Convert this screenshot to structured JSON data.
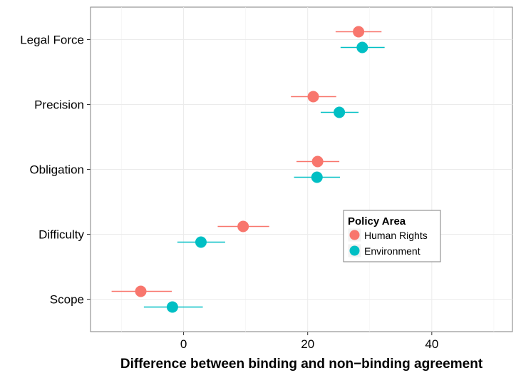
{
  "chart_data": {
    "type": "scatter",
    "categories": [
      "Legal Force",
      "Precision",
      "Obligation",
      "Difficulty",
      "Scope"
    ],
    "xlabel": "Difference between binding and non−binding agreement",
    "ylabel": "",
    "xlim": [
      -15,
      53
    ],
    "xticks": [
      0,
      20,
      40
    ],
    "grid": true,
    "legend": {
      "title": "Policy Area",
      "placement": "right-center"
    },
    "series": [
      {
        "name": "Human Rights",
        "color": "#F8766D",
        "points": [
          {
            "category": "Legal Force",
            "value": 28.2,
            "low": 24.5,
            "high": 31.9
          },
          {
            "category": "Precision",
            "value": 20.9,
            "low": 17.3,
            "high": 24.6
          },
          {
            "category": "Obligation",
            "value": 21.6,
            "low": 18.2,
            "high": 25.1
          },
          {
            "category": "Difficulty",
            "value": 9.6,
            "low": 5.5,
            "high": 13.8
          },
          {
            "category": "Scope",
            "value": -6.9,
            "low": -11.6,
            "high": -1.9
          }
        ]
      },
      {
        "name": "Environment",
        "color": "#00BFC4",
        "points": [
          {
            "category": "Legal Force",
            "value": 28.8,
            "low": 25.3,
            "high": 32.4
          },
          {
            "category": "Precision",
            "value": 25.1,
            "low": 22.1,
            "high": 28.2
          },
          {
            "category": "Obligation",
            "value": 21.5,
            "low": 17.8,
            "high": 25.2
          },
          {
            "category": "Difficulty",
            "value": 2.8,
            "low": -1.0,
            "high": 6.7
          },
          {
            "category": "Scope",
            "value": -1.8,
            "low": -6.4,
            "high": 3.1
          }
        ]
      }
    ]
  }
}
